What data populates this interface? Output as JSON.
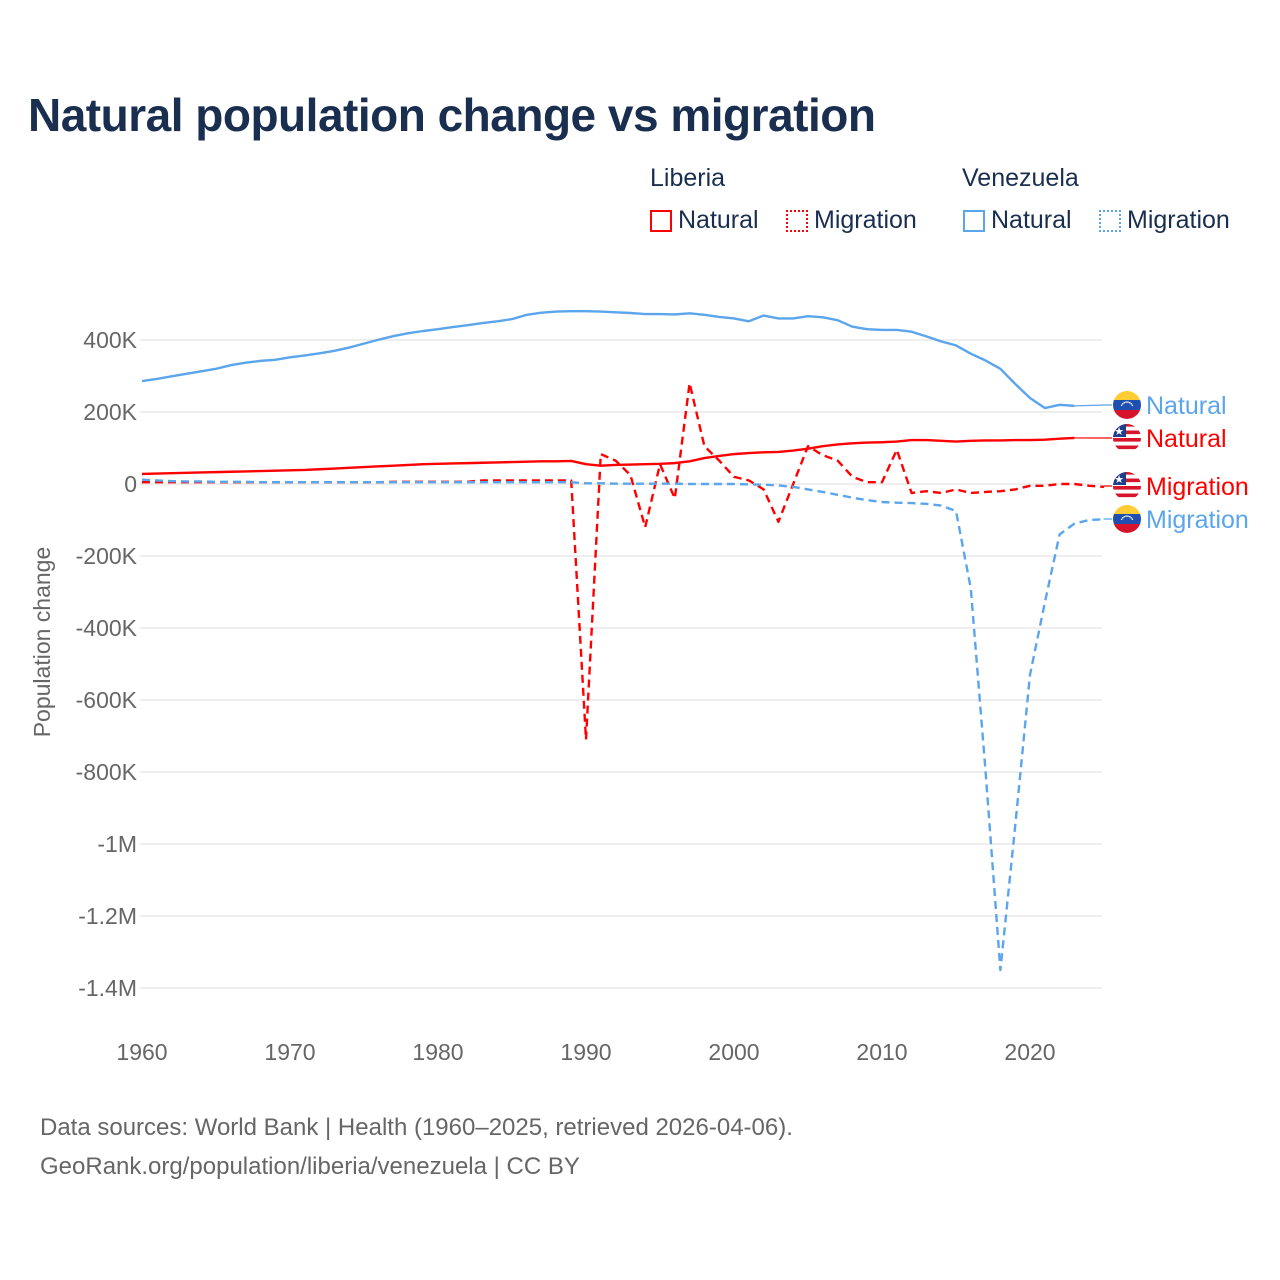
{
  "title": "Natural population change vs migration",
  "legend": {
    "groups": [
      {
        "name": "Liberia",
        "items": [
          "Natural",
          "Migration"
        ],
        "color": "#ff0000"
      },
      {
        "name": "Venezuela",
        "items": [
          "Natural",
          "Migration"
        ],
        "color": "#5aa5ec"
      }
    ]
  },
  "source": {
    "line1": "Data sources: World Bank | Health (1960–2025, retrieved 2026-04-06).",
    "line2": "GeoRank.org/population/liberia/venezuela | CC BY"
  },
  "chart_data": {
    "type": "line",
    "ylabel": "Population change",
    "xlabel": "",
    "xlim": [
      1960,
      2025
    ],
    "ylim": [
      -1500000,
      500000
    ],
    "x_ticks": [
      "1960",
      "1970",
      "1980",
      "1990",
      "2000",
      "2010",
      "2020"
    ],
    "y_ticks": [
      {
        "v": 400000,
        "label": "400K"
      },
      {
        "v": 200000,
        "label": "200K"
      },
      {
        "v": 0,
        "label": "0"
      },
      {
        "v": -200000,
        "label": "-200K"
      },
      {
        "v": -400000,
        "label": "-400K"
      },
      {
        "v": -600000,
        "label": "-600K"
      },
      {
        "v": -800000,
        "label": "-800K"
      },
      {
        "v": -1000000,
        "label": "-1M"
      },
      {
        "v": -1200000,
        "label": "-1.2M"
      },
      {
        "v": -1400000,
        "label": "-1.4M"
      }
    ],
    "grid": true,
    "start_year": 1960,
    "value_unit": "thousands",
    "series": [
      {
        "name": "Venezuela Natural",
        "end_label": "Natural",
        "country": "venezuela",
        "color": "#5aa5ec",
        "dash": false,
        "values": [
          286,
          292,
          299,
          306,
          313,
          320,
          330,
          337,
          342,
          345,
          352,
          357,
          363,
          370,
          379,
          390,
          401,
          411,
          419,
          425,
          430,
          436,
          441,
          447,
          452,
          458,
          470,
          476,
          479,
          480,
          480,
          479,
          477,
          475,
          472,
          472,
          471,
          474,
          470,
          464,
          460,
          452,
          468,
          460,
          460,
          466,
          463,
          455,
          437,
          430,
          428,
          428,
          423,
          410,
          396,
          385,
          362,
          343,
          320,
          278,
          239,
          211,
          220,
          217
        ]
      },
      {
        "name": "Liberia Natural",
        "end_label": "Natural",
        "country": "liberia",
        "color": "#ff0000",
        "dash": false,
        "values": [
          28,
          29,
          30,
          31,
          32,
          33,
          34,
          35,
          36,
          37,
          38,
          39,
          41,
          43,
          45,
          47,
          49,
          51,
          53,
          55,
          56,
          57,
          58,
          59,
          60,
          61,
          62,
          63,
          63,
          64,
          55,
          51,
          53,
          54,
          55,
          56,
          58,
          63,
          72,
          78,
          83,
          86,
          88,
          89,
          93,
          98,
          105,
          110,
          113,
          115,
          116,
          118,
          122,
          122,
          120,
          118,
          120,
          121,
          121,
          122,
          122,
          123,
          126,
          128
        ]
      },
      {
        "name": "Liberia Migration",
        "end_label": "Migration",
        "country": "liberia",
        "color": "#ff0000",
        "dash": true,
        "values": [
          5,
          5,
          5,
          5,
          5,
          5,
          5,
          5,
          5,
          5,
          5,
          5,
          5,
          5,
          5,
          5,
          5,
          6,
          6,
          6,
          6,
          6,
          6,
          10,
          10,
          10,
          10,
          10,
          10,
          10,
          -710,
          83,
          65,
          25,
          -120,
          55,
          -40,
          280,
          105,
          65,
          20,
          10,
          -15,
          -105,
          0,
          105,
          80,
          65,
          20,
          5,
          5,
          95,
          -25,
          -20,
          -25,
          -15,
          -25,
          -22,
          -20,
          -15,
          -5,
          -5,
          0,
          0,
          -5,
          -8
        ]
      },
      {
        "name": "Venezuela Migration",
        "end_label": "Migration",
        "country": "venezuela",
        "color": "#5aa5ec",
        "dash": true,
        "values": [
          12,
          10,
          8,
          7,
          7,
          6,
          6,
          6,
          5,
          5,
          5,
          5,
          5,
          5,
          5,
          5,
          5,
          5,
          5,
          5,
          5,
          5,
          5,
          5,
          5,
          5,
          5,
          5,
          5,
          5,
          2,
          2,
          1,
          1,
          1,
          1,
          1,
          0,
          0,
          0,
          0,
          -1,
          -2,
          -4,
          -8,
          -15,
          -22,
          -30,
          -38,
          -45,
          -50,
          -52,
          -53,
          -55,
          -60,
          -75,
          -290,
          -800,
          -1350,
          -950,
          -530,
          -330,
          -140,
          -110,
          -100,
          -98
        ]
      }
    ]
  }
}
